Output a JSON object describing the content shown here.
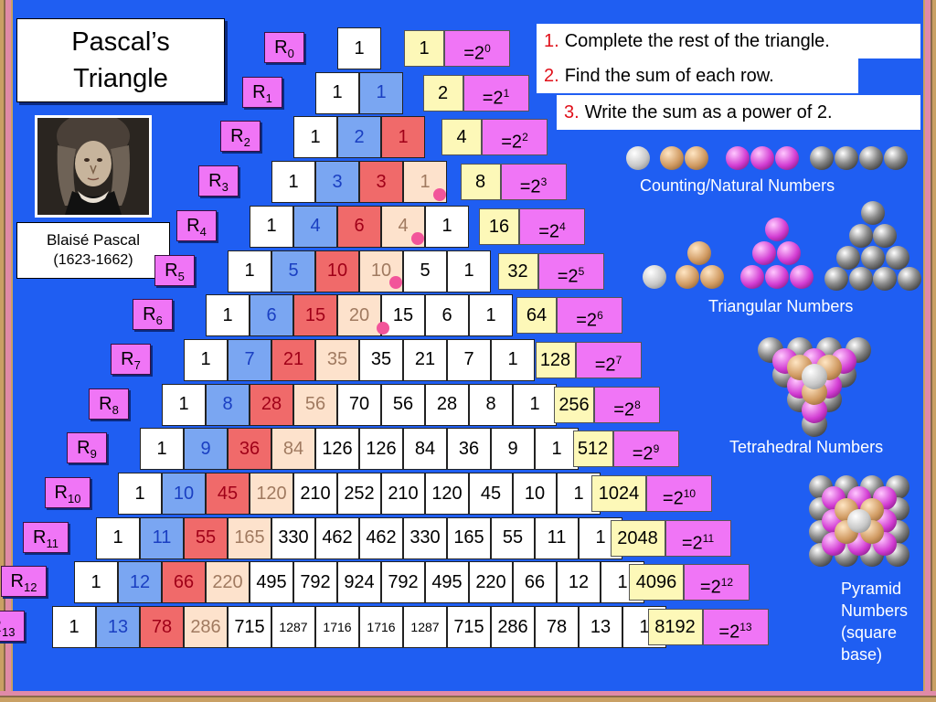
{
  "title_line1": "Pascal’s",
  "title_line2": "Triangle",
  "portrait_name": "Blaisé Pascal",
  "portrait_years": "(1623-1662)",
  "instructions": [
    {
      "num": "1.",
      "text": "Complete the rest of the triangle."
    },
    {
      "num": "2.",
      "text": "Find the sum of each row."
    },
    {
      "num": "3.",
      "text": "Write the sum as a power of 2."
    }
  ],
  "row_prefix": "R",
  "power_base": "=2",
  "rows": [
    {
      "sub": "0",
      "values": [
        "1"
      ],
      "sum": "1",
      "exp": "0"
    },
    {
      "sub": "1",
      "values": [
        "1",
        "1"
      ],
      "sum": "2",
      "exp": "1"
    },
    {
      "sub": "2",
      "values": [
        "1",
        "2",
        "1"
      ],
      "sum": "4",
      "exp": "2"
    },
    {
      "sub": "3",
      "values": [
        "1",
        "3",
        "3",
        "1"
      ],
      "sum": "8",
      "exp": "3"
    },
    {
      "sub": "4",
      "values": [
        "1",
        "4",
        "6",
        "4",
        "1"
      ],
      "sum": "16",
      "exp": "4"
    },
    {
      "sub": "5",
      "values": [
        "1",
        "5",
        "10",
        "10",
        "5",
        "1"
      ],
      "sum": "32",
      "exp": "5"
    },
    {
      "sub": "6",
      "values": [
        "1",
        "6",
        "15",
        "20",
        "15",
        "6",
        "1"
      ],
      "sum": "64",
      "exp": "6"
    },
    {
      "sub": "7",
      "values": [
        "1",
        "7",
        "21",
        "35",
        "35",
        "21",
        "7",
        "1"
      ],
      "sum": "128",
      "exp": "7"
    },
    {
      "sub": "8",
      "values": [
        "1",
        "8",
        "28",
        "56",
        "70",
        "56",
        "28",
        "8",
        "1"
      ],
      "sum": "256",
      "exp": "8"
    },
    {
      "sub": "9",
      "values": [
        "1",
        "9",
        "36",
        "84",
        "126",
        "126",
        "84",
        "36",
        "9",
        "1"
      ],
      "sum": "512",
      "exp": "9"
    },
    {
      "sub": "10",
      "values": [
        "1",
        "10",
        "45",
        "120",
        "210",
        "252",
        "210",
        "120",
        "45",
        "10",
        "1"
      ],
      "sum": "1024",
      "exp": "10"
    },
    {
      "sub": "11",
      "values": [
        "1",
        "11",
        "55",
        "165",
        "330",
        "462",
        "462",
        "330",
        "165",
        "55",
        "11",
        "1"
      ],
      "sum": "2048",
      "exp": "11"
    },
    {
      "sub": "12",
      "values": [
        "1",
        "12",
        "66",
        "220",
        "495",
        "792",
        "924",
        "792",
        "495",
        "220",
        "66",
        "12",
        "1"
      ],
      "sum": "4096",
      "exp": "12"
    },
    {
      "sub": "13",
      "values": [
        "1",
        "13",
        "78",
        "286",
        "715",
        "1287",
        "1716",
        "1716",
        "1287",
        "715",
        "286",
        "78",
        "13",
        "1"
      ],
      "sum": "8192",
      "exp": "13"
    }
  ],
  "labels": {
    "counting": "Counting/Natural Numbers",
    "triangular": "Triangular Numbers",
    "tetrahedral": "Tetrahedral Numbers",
    "pyramid_lines": [
      "Pyramid",
      "Numbers",
      "(square",
      "base)"
    ]
  },
  "colors": {
    "diagonal_ones": "#ffffff",
    "diagonal_counting": "#7aa6f2",
    "diagonal_triangular": "#f06a6a",
    "diagonal_tetrahedral": "#fde2cc",
    "sum_box": "#fdf8b8",
    "power_box": "#f075f6"
  }
}
